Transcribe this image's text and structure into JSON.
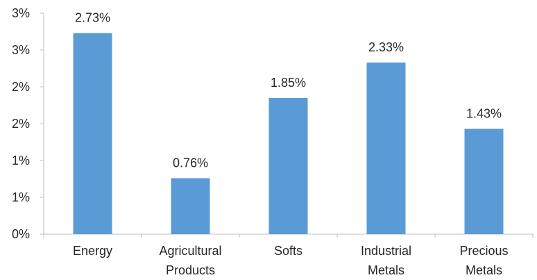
{
  "chart_data": {
    "type": "bar",
    "categories": [
      [
        "Energy"
      ],
      [
        "Agricultural",
        "Products"
      ],
      [
        "Softs"
      ],
      [
        "Industrial",
        "Metals"
      ],
      [
        "Precious",
        "Metals"
      ]
    ],
    "values": [
      2.73,
      0.76,
      1.85,
      2.33,
      1.43
    ],
    "data_labels": [
      "2.73%",
      "0.76%",
      "1.85%",
      "2.33%",
      "1.43%"
    ],
    "y_tick_values": [
      0,
      0.5,
      1,
      1.5,
      2,
      2.5,
      3
    ],
    "y_tick_labels": [
      "0%",
      "1%",
      "1%",
      "2%",
      "2%",
      "3%",
      "3%"
    ],
    "ylim": [
      0,
      3
    ],
    "grid": false,
    "legend": "none",
    "bar_color": "#5b9bd5",
    "axis_color": "#bfbfbf",
    "text_color": "#262626"
  }
}
